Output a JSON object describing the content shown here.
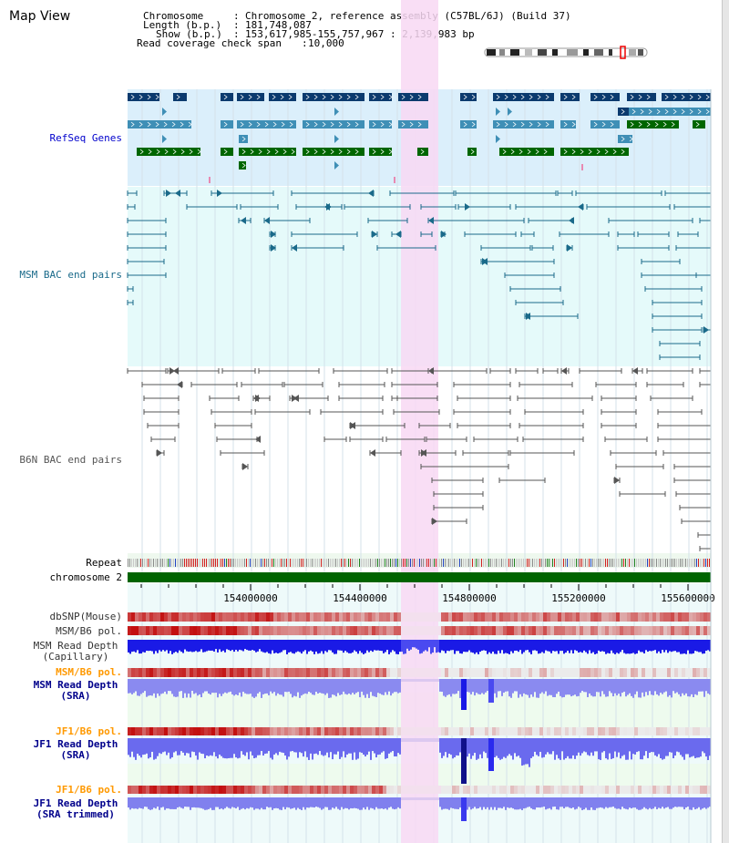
{
  "header": {
    "title": "Map View",
    "chromosome_label": "Chromosome",
    "chromosome_value": "Chromosome 2, reference assembly (C57BL/6J) (Build 37)",
    "length_label": "Length (b.p.)",
    "length_value": "181,748,087",
    "show_label": "Show (b.p.)",
    "show_value": "153,617,985-155,757,967 : 2,139,983 bp",
    "span_label": "Read coverage check span",
    "span_value": "10,000"
  },
  "tracks": {
    "refseq": "RefSeq Genes",
    "msm_bac": "MSM BAC end pairs",
    "b6n_bac": "B6N BAC end pairs",
    "repeat": "Repeat",
    "chromosome": "chromosome 2",
    "dbsnp": "dbSNP(Mouse)",
    "msm_b6_pol": "MSM/B6 pol.",
    "msm_depth_cap_1": "MSM Read Depth",
    "msm_depth_cap_2": "(Capillary)",
    "msm_b6_pol_2": "MSM/B6 pol.",
    "msm_depth_sra_1": "MSM Read Depth",
    "msm_depth_sra_2": "(SRA)",
    "jf1_b6_pol_1": "JF1/B6 pol.",
    "jf1_depth_sra_1": "JF1 Read Depth",
    "jf1_depth_sra_2": "(SRA)",
    "jf1_b6_pol_2": "JF1/B6 pol.",
    "jf1_depth_trim_1": "JF1 Read Depth",
    "jf1_depth_trim_2": "(SRA trimmed)"
  },
  "axis": {
    "ticks": [
      "154000000",
      "154400000",
      "154800000",
      "155200000",
      "155600000"
    ]
  },
  "colors": {
    "refseq_dark": "#0b3a6e",
    "refseq_mid": "#3f8fb6",
    "refseq_green": "#006600",
    "refseq_bg": "#dbeffb",
    "msm_bg": "#e5fafa",
    "msm_line": "#1a6a8a",
    "bac_gray": "#555555",
    "highlight": "#f8d8f3",
    "chromosome_bar": "#006400",
    "snp_red": "#e21010",
    "depth_blue": "#1a1ae6",
    "depth_light": "#8a8af0",
    "pol_label": "#ff9900",
    "depth_label": "#00008b"
  }
}
